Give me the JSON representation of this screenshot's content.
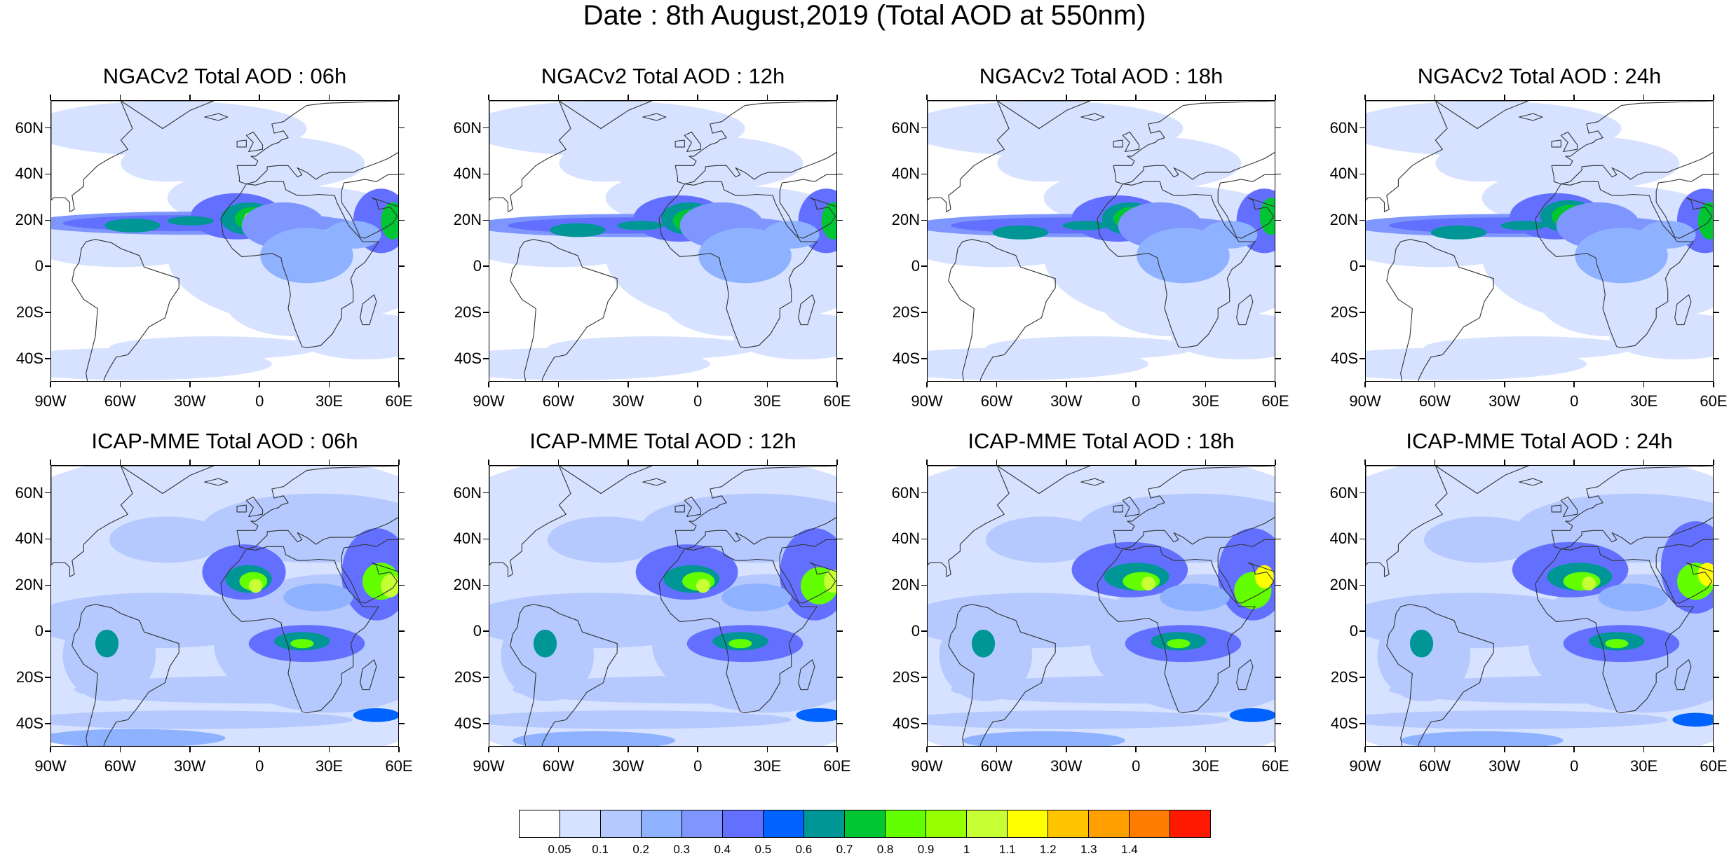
{
  "title": "Date : 8th August,2019 (Total AOD at 550nm)",
  "rows": [
    {
      "model": "NGACv2",
      "panels": [
        {
          "title": "NGACv2 Total AOD : 06h",
          "hour": "06h"
        },
        {
          "title": "NGACv2 Total AOD : 12h",
          "hour": "12h"
        },
        {
          "title": "NGACv2 Total AOD : 18h",
          "hour": "18h"
        },
        {
          "title": "NGACv2 Total AOD : 24h",
          "hour": "24h"
        }
      ]
    },
    {
      "model": "ICAP-MME",
      "panels": [
        {
          "title": "ICAP-MME Total AOD : 06h",
          "hour": "06h"
        },
        {
          "title": "ICAP-MME Total AOD : 12h",
          "hour": "12h"
        },
        {
          "title": "ICAP-MME Total AOD : 18h",
          "hour": "18h"
        },
        {
          "title": "ICAP-MME Total AOD : 24h",
          "hour": "24h"
        }
      ]
    }
  ],
  "axes": {
    "lat_ticks": [
      {
        "label": "60N",
        "value": 60
      },
      {
        "label": "40N",
        "value": 40
      },
      {
        "label": "20N",
        "value": 20
      },
      {
        "label": "0",
        "value": 0
      },
      {
        "label": "20S",
        "value": -20
      },
      {
        "label": "40S",
        "value": -40
      }
    ],
    "lon_ticks": [
      {
        "label": "90W",
        "value": -90
      },
      {
        "label": "60W",
        "value": -60
      },
      {
        "label": "30W",
        "value": -30
      },
      {
        "label": "0",
        "value": 0
      },
      {
        "label": "30E",
        "value": 30
      },
      {
        "label": "60E",
        "value": 60
      }
    ],
    "lon_range": [
      -90,
      60
    ],
    "lat_range": [
      -50,
      72
    ]
  },
  "colorbar": {
    "colors": [
      "#ffffff",
      "#d6e2ff",
      "#b5c9ff",
      "#8eb2ff",
      "#7f96ff",
      "#6370ff",
      "#0063ff",
      "#009696",
      "#00c633",
      "#63ff00",
      "#96ff00",
      "#c6ff33",
      "#ffff00",
      "#ffc600",
      "#ffa000",
      "#ff7c00",
      "#ff1900"
    ],
    "labels": [
      "0.05",
      "0.1",
      "0.2",
      "0.3",
      "0.4",
      "0.5",
      "0.6",
      "0.7",
      "0.8",
      "0.9",
      "1",
      "1.1",
      "1.2",
      "1.3",
      "1.4"
    ]
  }
}
